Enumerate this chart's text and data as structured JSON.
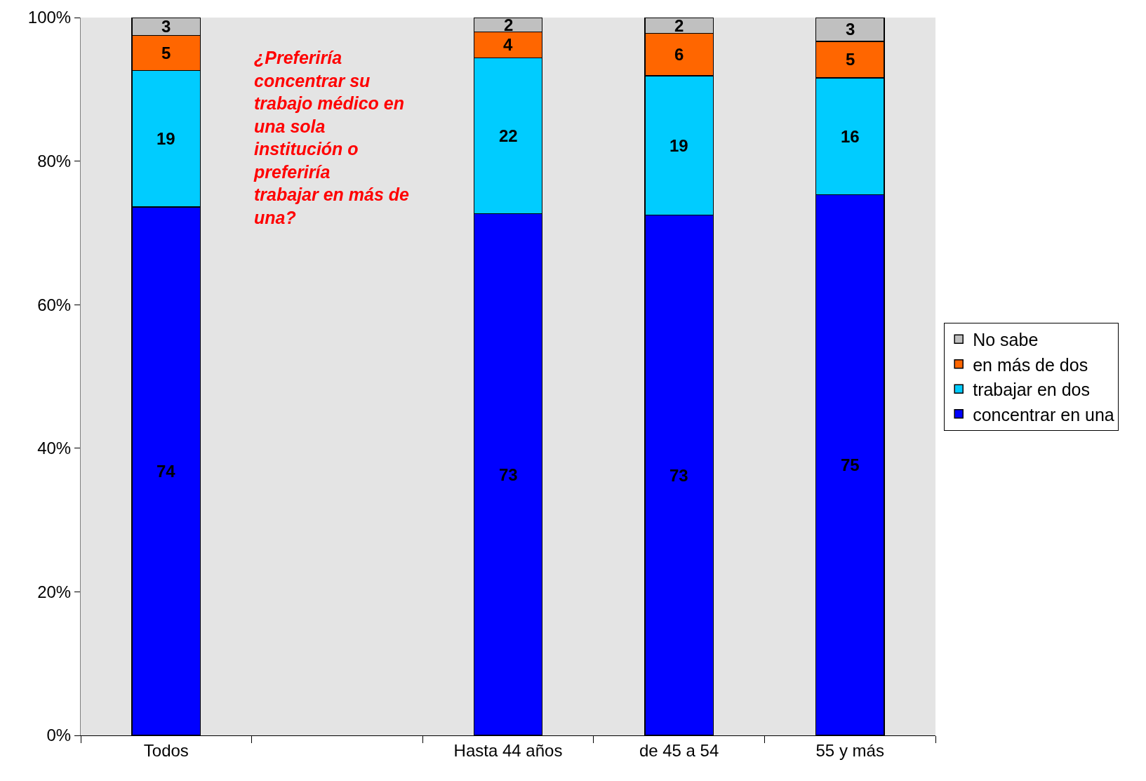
{
  "chart_data": {
    "type": "bar",
    "stacked": true,
    "categories": [
      "Todos",
      null,
      "Hasta 44 años",
      "de 45 a 54",
      "55 y más"
    ],
    "series": [
      {
        "name": "concentrar en una",
        "color": "#0000ff",
        "values": [
          73.6,
          null,
          72.7,
          72.5,
          75.3
        ],
        "value_labels": [
          "74",
          null,
          "73",
          "73",
          "75"
        ]
      },
      {
        "name": "trabajar en dos",
        "color": "#00ccff",
        "values": [
          19.0,
          null,
          21.7,
          19.4,
          16.3
        ],
        "value_labels": [
          "19",
          null,
          "22",
          "19",
          "16"
        ]
      },
      {
        "name": "en más de dos",
        "color": "#ff6600",
        "values": [
          4.9,
          null,
          3.6,
          5.9,
          5.1
        ],
        "value_labels": [
          "5",
          null,
          "4",
          "6",
          "5"
        ]
      },
      {
        "name": "No sabe",
        "color": "#c0c0c0",
        "values": [
          2.5,
          null,
          2.0,
          2.2,
          3.3
        ],
        "value_labels": [
          "3",
          null,
          "2",
          "2",
          "3"
        ]
      }
    ],
    "ylim": [
      0,
      100
    ],
    "yticks": [
      {
        "value": 0,
        "label": "0%"
      },
      {
        "value": 20,
        "label": "20%"
      },
      {
        "value": 40,
        "label": "40%"
      },
      {
        "value": 60,
        "label": "60%"
      },
      {
        "value": 80,
        "label": "80%"
      },
      {
        "value": 100,
        "label": "100%"
      }
    ],
    "legend": "right",
    "grid": false,
    "annotations": [
      "¿Preferiría concentrar su trabajo médico en una sola institución o preferiría trabajar en más de una?"
    ]
  }
}
